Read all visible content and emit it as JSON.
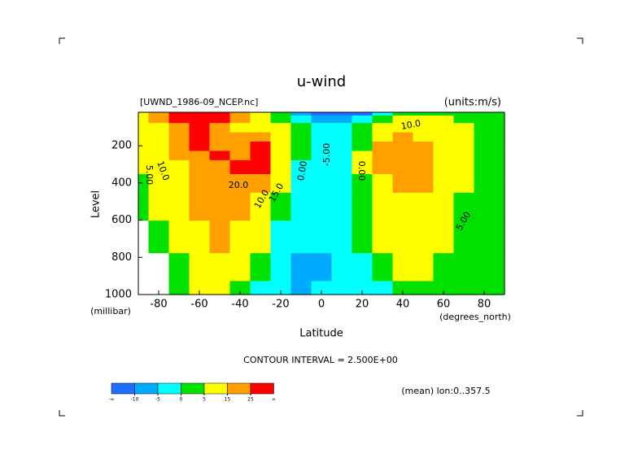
{
  "chart_data": {
    "type": "contour",
    "title": "u-wind",
    "subtitle_left": "[UWND_1986-09_NCEP.nc]",
    "subtitle_right": "(units:m/s)",
    "y_label": "Level",
    "y_unit": "(millibar)",
    "x_label": "Latitude",
    "x_unit": "(degrees_north)",
    "footer": "CONTOUR INTERVAL = 2.500E+00",
    "note": "(mean) lon:0..357.5",
    "x": [
      -90,
      -80,
      -70,
      -60,
      -50,
      -40,
      -30,
      -20,
      -10,
      0,
      10,
      20,
      30,
      40,
      50,
      60,
      70,
      80,
      90
    ],
    "levels": [
      1000,
      850,
      700,
      500,
      400,
      300,
      250,
      200,
      150,
      100,
      50,
      20
    ],
    "values": [
      [
        null,
        null,
        2,
        8,
        7,
        4,
        -1,
        -5,
        -6,
        -5,
        -2,
        -4,
        -1,
        3,
        4,
        2,
        0,
        0,
        0
      ],
      [
        null,
        null,
        3,
        12,
        12,
        8,
        2,
        -5,
        -7,
        -7,
        -3,
        -2,
        2,
        6,
        6,
        3,
        1,
        0,
        0
      ],
      [
        null,
        1,
        6,
        14,
        15,
        12,
        6,
        -1,
        -4,
        -4,
        -2,
        0,
        5,
        9,
        9,
        5,
        2,
        1,
        0
      ],
      [
        3,
        5,
        10,
        17,
        19,
        18,
        13,
        4,
        -2,
        -3,
        -2,
        3,
        10,
        14,
        13,
        8,
        4,
        2,
        1
      ],
      [
        4,
        7,
        12,
        19,
        22,
        22,
        19,
        8,
        -1,
        -3,
        -2,
        4,
        13,
        18,
        16,
        10,
        5,
        2,
        1
      ],
      [
        5,
        8,
        14,
        22,
        24,
        25,
        28,
        13,
        -1,
        -4,
        -3,
        5,
        18,
        23,
        19,
        12,
        6,
        3,
        2
      ],
      [
        5,
        9,
        15,
        24,
        25,
        24,
        28,
        14,
        0,
        -4,
        -3,
        5,
        19,
        24,
        20,
        12,
        6,
        3,
        2
      ],
      [
        6,
        10,
        17,
        26,
        24,
        22,
        27,
        14,
        1,
        -3,
        -4,
        4,
        18,
        23,
        18,
        11,
        6,
        3,
        2
      ],
      [
        6,
        11,
        20,
        28,
        22,
        18,
        20,
        10,
        1,
        -3,
        -3,
        2,
        12,
        17,
        14,
        9,
        5,
        3,
        2
      ],
      [
        7,
        13,
        24,
        30,
        20,
        14,
        12,
        5,
        0,
        -4,
        -3,
        0,
        6,
        11,
        11,
        8,
        5,
        3,
        1
      ],
      [
        8,
        18,
        32,
        36,
        26,
        15,
        8,
        2,
        -3,
        -7,
        -8,
        -5,
        1,
        5,
        7,
        6,
        4,
        2,
        1
      ],
      [
        10,
        24,
        40,
        45,
        32,
        18,
        8,
        0,
        -8,
        -12,
        -15,
        -12,
        -5,
        0,
        3,
        4,
        3,
        2,
        1
      ]
    ],
    "xlim": [
      -90,
      90
    ],
    "xticks": [
      -80,
      -60,
      -40,
      -20,
      0,
      20,
      40,
      60,
      80
    ],
    "ylim": [
      1000,
      20
    ],
    "yticks": [
      200,
      400,
      600,
      800,
      1000
    ],
    "contour_labels": [
      "5.00",
      "10.0",
      "20.0",
      "15.0",
      "10.0",
      "0.00",
      "-5.00",
      "0.00",
      "10.0",
      "5.00"
    ],
    "colorbar": {
      "levels": [
        -10,
        -5,
        0,
        5,
        15,
        25
      ],
      "colors": [
        "#1e6eff",
        "#00aaff",
        "#00ffff",
        "#00e100",
        "#ffff00",
        "#ffa000",
        "#ff0000"
      ],
      "end_labels": [
        "-∞",
        "∞"
      ]
    }
  }
}
